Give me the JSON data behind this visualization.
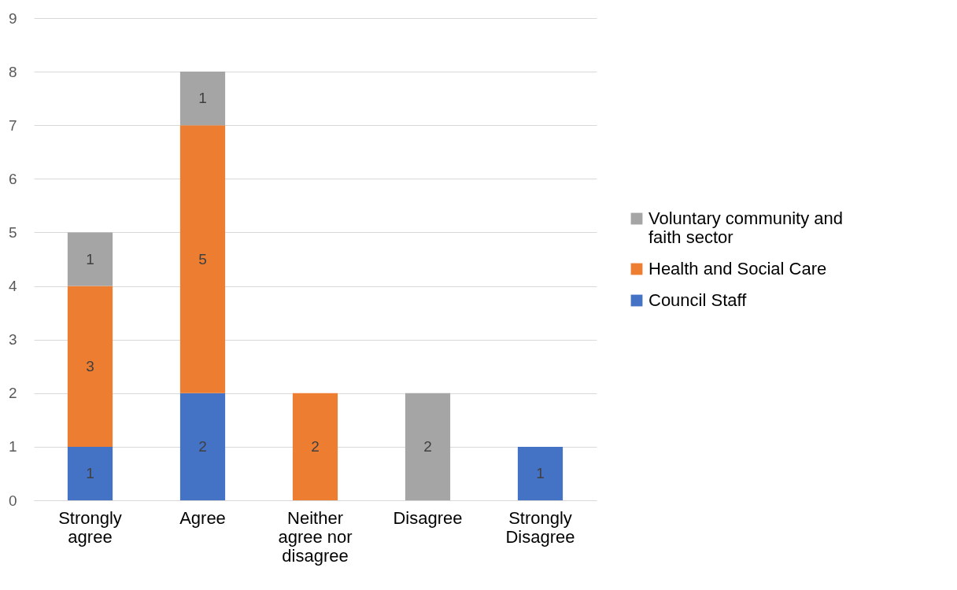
{
  "chart_data": {
    "type": "bar",
    "stacked": true,
    "categories": [
      "Strongly agree",
      "Agree",
      "Neither agree nor disagree",
      "Disagree",
      "Strongly Disagree"
    ],
    "series": [
      {
        "name": "Council Staff",
        "color": "#4472c4",
        "values": [
          1,
          2,
          null,
          null,
          1
        ]
      },
      {
        "name": "Health and Social Care",
        "color": "#ed7d31",
        "values": [
          3,
          5,
          2,
          null,
          null
        ]
      },
      {
        "name": "Voluntary community and faith sector",
        "color": "#a5a5a5",
        "values": [
          1,
          1,
          null,
          2,
          null
        ]
      }
    ],
    "ylim": [
      0,
      9
    ],
    "yticks": [
      0,
      1,
      2,
      3,
      4,
      5,
      6,
      7,
      8,
      9
    ],
    "grid": "y",
    "legend": "right",
    "data_labels": true
  }
}
